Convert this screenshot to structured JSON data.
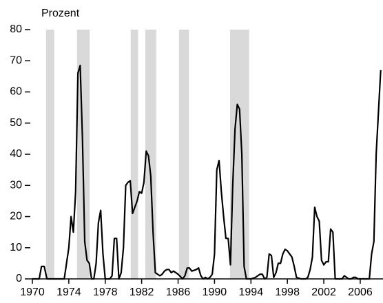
{
  "chart_data": {
    "type": "line",
    "y_label": "Prozent",
    "xlim": [
      1970,
      2008.5
    ],
    "ylim": [
      0,
      80
    ],
    "xticks": [
      1970,
      1974,
      1978,
      1982,
      1986,
      1990,
      1994,
      1998,
      2002,
      2006
    ],
    "yticks": [
      0,
      10,
      20,
      30,
      40,
      50,
      60,
      70,
      80
    ],
    "shaded_ranges": [
      [
        1971.5,
        1972.4
      ],
      [
        1974.9,
        1976.3
      ],
      [
        1980.8,
        1981.6
      ],
      [
        1982.4,
        1983.6
      ],
      [
        1986.1,
        1987.2
      ],
      [
        1991.7,
        1993.8
      ]
    ],
    "shade_color": "#d9d9d9",
    "series": [
      {
        "color": "#000000",
        "x": [
          1970.0,
          1970.75,
          1971.0,
          1971.3,
          1971.6,
          1972.0,
          1973.5,
          1974.0,
          1974.25,
          1974.5,
          1974.75,
          1975.0,
          1975.25,
          1975.5,
          1975.75,
          1976.0,
          1976.25,
          1976.5,
          1976.75,
          1977.0,
          1977.25,
          1977.5,
          1977.75,
          1978.0,
          1978.5,
          1978.75,
          1979.0,
          1979.25,
          1979.5,
          1979.75,
          1980.0,
          1980.25,
          1980.5,
          1980.75,
          1981.0,
          1981.25,
          1981.5,
          1981.75,
          1982.0,
          1982.25,
          1982.5,
          1982.75,
          1983.0,
          1983.25,
          1983.5,
          1983.75,
          1984.0,
          1984.25,
          1984.5,
          1984.75,
          1985.0,
          1985.25,
          1985.5,
          1985.75,
          1986.0,
          1986.5,
          1986.75,
          1987.0,
          1987.25,
          1987.5,
          1988.0,
          1988.25,
          1988.5,
          1988.75,
          1989.0,
          1989.25,
          1989.5,
          1989.75,
          1990.0,
          1990.25,
          1990.5,
          1990.75,
          1991.0,
          1991.25,
          1991.5,
          1991.75,
          1992.0,
          1992.25,
          1992.5,
          1992.75,
          1993.0,
          1993.25,
          1993.5,
          1994.0,
          1994.5,
          1995.0,
          1995.25,
          1995.5,
          1995.75,
          1996.0,
          1996.25,
          1996.5,
          1996.75,
          1997.0,
          1997.25,
          1997.5,
          1997.75,
          1998.0,
          1998.25,
          1998.5,
          1998.75,
          1999.0,
          1999.5,
          2000.0,
          2000.25,
          2000.5,
          2000.75,
          2001.0,
          2001.25,
          2001.5,
          2001.75,
          2002.0,
          2002.25,
          2002.5,
          2002.75,
          2003.0,
          2003.25,
          2003.75,
          2004.0,
          2004.25,
          2004.5,
          2004.75,
          2005.0,
          2005.25,
          2005.5,
          2005.75,
          2006.0,
          2006.5,
          2007.0,
          2007.25,
          2007.5,
          2007.75,
          2008.25
        ],
        "values": [
          0,
          0,
          4,
          4,
          0,
          0,
          0,
          10,
          20,
          15,
          28,
          66,
          68.5,
          45,
          12,
          6,
          5,
          0,
          0,
          5,
          18,
          22,
          8,
          0,
          0,
          1,
          13,
          13,
          0,
          2,
          10,
          30,
          31,
          31.5,
          21,
          23,
          25,
          28,
          27.5,
          31,
          41,
          39.5,
          33,
          15,
          2,
          1.5,
          1,
          1.5,
          2.5,
          3,
          3,
          2,
          2.5,
          2,
          1.5,
          0,
          1,
          3.5,
          3.5,
          2.5,
          3,
          3.5,
          1,
          0,
          0.5,
          0,
          0.5,
          1.5,
          8,
          35,
          38,
          28,
          20,
          13,
          13,
          4.5,
          30,
          48,
          56,
          54.5,
          40,
          4,
          0,
          0,
          0.5,
          1.5,
          1.5,
          0,
          0.5,
          8,
          7.5,
          0.5,
          2,
          5,
          5,
          8,
          9.5,
          9,
          8,
          7,
          4,
          0.5,
          0,
          0,
          0.5,
          3,
          7,
          23,
          20,
          18.5,
          6,
          4.5,
          5.5,
          5.5,
          16,
          15,
          0,
          0,
          0,
          1,
          0.5,
          0,
          0,
          0.5,
          0.5,
          0,
          0,
          0,
          0,
          8,
          12,
          40,
          67
        ]
      }
    ]
  }
}
